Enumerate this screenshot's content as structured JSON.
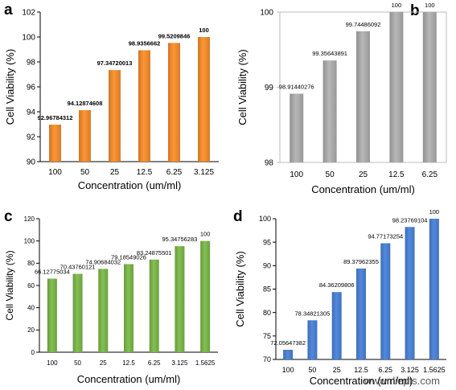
{
  "watermark": "www.rliepts.com",
  "chart_data": [
    {
      "panel_label": "a",
      "type": "bar",
      "categories": [
        "100",
        "50",
        "25",
        "12.5",
        "6.25",
        "3.125"
      ],
      "values": [
        92.96784312,
        94.12874608,
        97.34720013,
        98.9356662,
        99.5209846,
        100
      ],
      "value_labels": [
        "92.96784312",
        "94.12874608",
        "97.34720013",
        "98.9356662",
        "99.5209846",
        "100"
      ],
      "xlabel": "Concentration (um/ml)",
      "ylabel": "Cell Viability (%)",
      "ylim": [
        90,
        102
      ],
      "yticks": [
        90,
        92,
        94,
        96,
        98,
        100,
        102
      ],
      "bar_color": "#ef8a2f",
      "grid": false,
      "legend": "none"
    },
    {
      "panel_label": "b",
      "type": "bar",
      "categories": [
        "100",
        "50",
        "25",
        "12.5",
        "6.25"
      ],
      "values": [
        98.91440276,
        99.35643891,
        99.74486092,
        100,
        100
      ],
      "value_labels": [
        "98.91440276",
        "99.35643891",
        "99.74486092",
        "100",
        "100"
      ],
      "xlabel": "Concentration (um/ml)",
      "ylabel": "Cell Viability (%)",
      "ylim": [
        98,
        100
      ],
      "yticks": [
        98,
        99,
        100
      ],
      "bar_color": "#a9a9a9",
      "grid": false,
      "legend": "none"
    },
    {
      "panel_label": "c",
      "type": "bar",
      "categories": [
        "100",
        "50",
        "25",
        "12.5",
        "6.25",
        "3.125",
        "1.5625"
      ],
      "values": [
        66.12775034,
        70.43760121,
        74.90684032,
        79.18549026,
        83.24875501,
        95.34756283,
        100
      ],
      "value_labels": [
        "66.12775034",
        "70.43760121",
        "74.90684032",
        "79.18549026",
        "83.24875501",
        "95.34756283",
        "100"
      ],
      "xlabel": "Concentration (um/ml)",
      "ylabel": "Cell Viability (%)",
      "ylim": [
        0,
        120
      ],
      "yticks": [
        0,
        20,
        40,
        60,
        80,
        100,
        120
      ],
      "bar_color": "#79b24a",
      "grid": false,
      "legend": "none"
    },
    {
      "panel_label": "d",
      "type": "bar",
      "categories": [
        "100",
        "50",
        "25",
        "12.5",
        "6.25",
        "3.125",
        "1.5625"
      ],
      "values": [
        72.05647382,
        78.34821305,
        84.36209806,
        89.37962355,
        94.77173254,
        98.23769104,
        100
      ],
      "value_labels": [
        "72.05647382",
        "78.34821305",
        "84.36209806",
        "89.37962355",
        "94.77173254",
        "98.23769104",
        "100"
      ],
      "xlabel": "Concentration (um/ml)",
      "ylabel": "Cell Viability (%)",
      "ylim": [
        70,
        100
      ],
      "yticks": [
        70,
        75,
        80,
        85,
        90,
        95,
        100
      ],
      "bar_color": "#4a7fcf",
      "grid": false,
      "legend": "none"
    }
  ]
}
